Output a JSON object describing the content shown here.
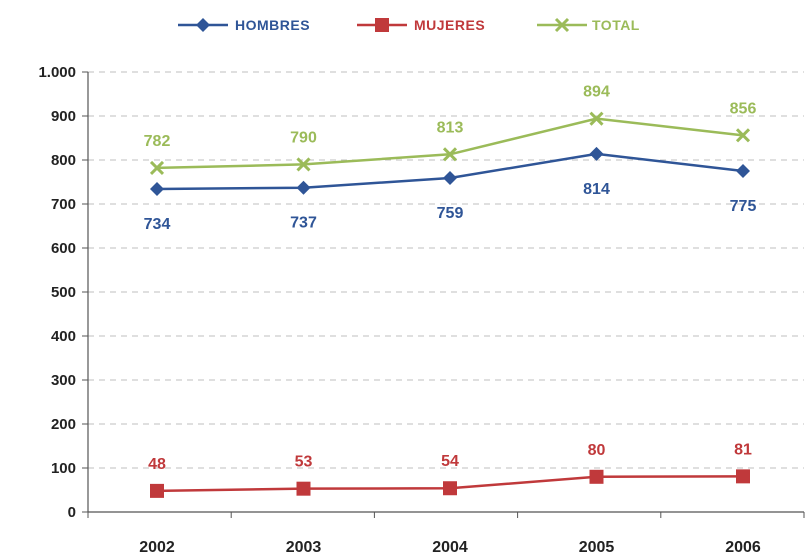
{
  "chart_data": {
    "type": "line",
    "categories": [
      "2002",
      "2003",
      "2004",
      "2005",
      "2006"
    ],
    "ylim": [
      0,
      1000
    ],
    "yticks": [
      0,
      100,
      200,
      300,
      400,
      500,
      600,
      700,
      800,
      900,
      1000
    ],
    "ytick_labels": [
      "0",
      "100",
      "200",
      "300",
      "400",
      "500",
      "600",
      "700",
      "800",
      "900",
      "1.000"
    ],
    "grid": true,
    "legend_position": "top",
    "series": [
      {
        "name": "HOMBRES",
        "color": "#2f5597",
        "marker": "diamond",
        "label_position": "below",
        "values": [
          734,
          737,
          759,
          814,
          775
        ],
        "value_labels": [
          "734",
          "737",
          "759",
          "814",
          "775"
        ]
      },
      {
        "name": "MUJERES",
        "color": "#c0393b",
        "marker": "square",
        "label_position": "above",
        "values": [
          48,
          53,
          54,
          80,
          81
        ],
        "value_labels": [
          "48",
          "53",
          "54",
          "80",
          "81"
        ]
      },
      {
        "name": "TOTAL",
        "color": "#9bbb59",
        "marker": "x",
        "label_position": "above",
        "values": [
          782,
          790,
          813,
          894,
          856
        ],
        "value_labels": [
          "782",
          "790",
          "813",
          "894",
          "856"
        ]
      }
    ]
  }
}
